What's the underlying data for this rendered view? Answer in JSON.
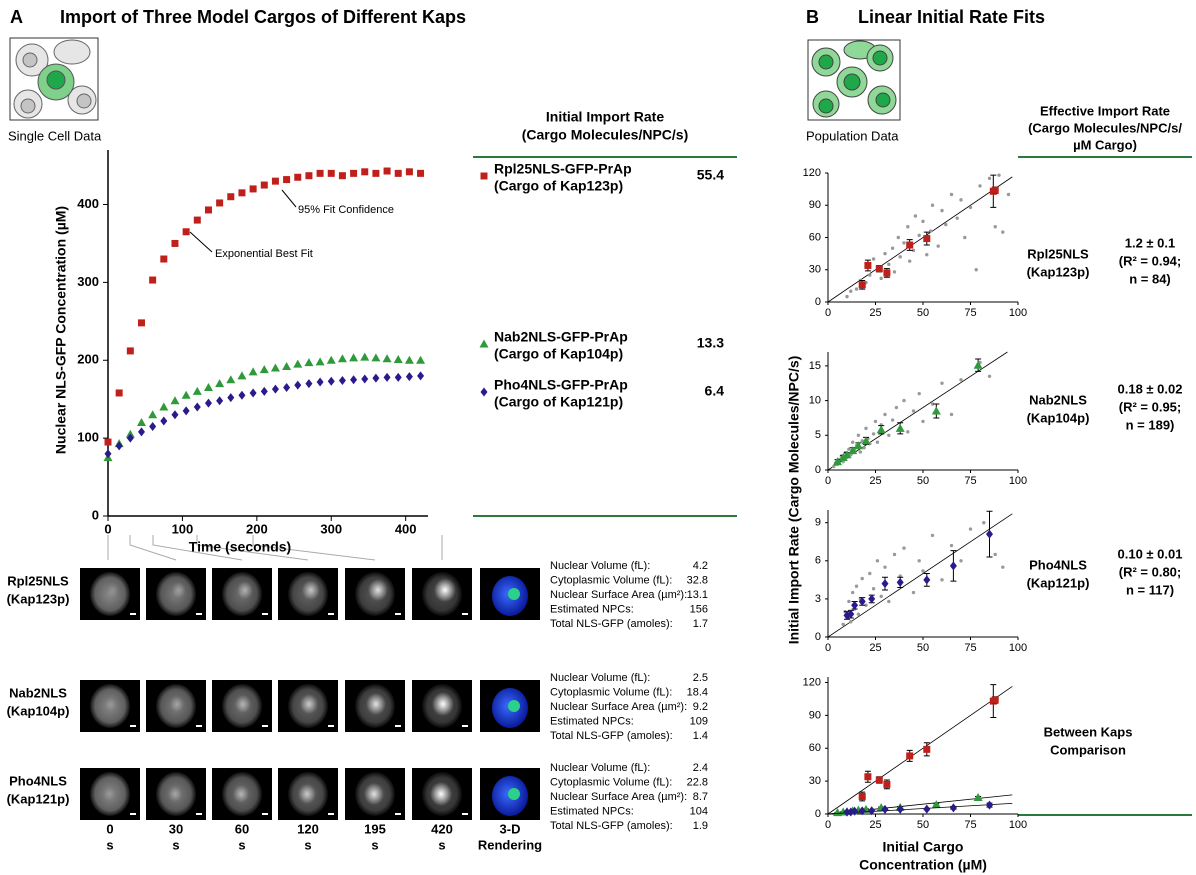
{
  "panel_a": {
    "letter": "A",
    "title": "Import of Three Model Cargos of Different Kaps",
    "icon_caption": "Single Cell Data",
    "rate_header": [
      "Initial Import Rate",
      "(Cargo Molecules/NPC/s)"
    ]
  },
  "panel_b": {
    "letter": "B",
    "title": "Linear Initial Rate Fits",
    "icon_caption": "Population Data",
    "rate_header": [
      "Effective Import Rate",
      "(Cargo Molecules/NPC/s/",
      "µM Cargo)"
    ],
    "y_label": "Initial Import Rate (Cargo Molecules/NPC/s)",
    "x_label": [
      "Initial Cargo",
      "Concentration (µM)"
    ]
  },
  "chart_data": [
    {
      "type": "scatter",
      "x_label": "Time (seconds)",
      "y_label": "Nuclear NLS-GFP Concentration (µM)",
      "annotations": [
        "Exponential Best Fit",
        "95% Fit Confidence"
      ],
      "xlim": [
        0,
        430
      ],
      "xticks": [
        0,
        100,
        200,
        300,
        400
      ],
      "ylim": [
        0,
        470
      ],
      "yticks": [
        0,
        100,
        200,
        300,
        400
      ],
      "x": [
        0,
        15,
        30,
        45,
        60,
        75,
        90,
        105,
        120,
        135,
        150,
        165,
        180,
        195,
        210,
        225,
        240,
        255,
        270,
        285,
        300,
        315,
        330,
        345,
        360,
        375,
        390,
        405,
        420
      ],
      "series": [
        {
          "name": "Rpl25NLS-GFP-PrAp",
          "cargo_of": "(Cargo of Kap123p)",
          "rate": 55.4,
          "marker": "square",
          "color": "#c0201b",
          "values": [
            95,
            158,
            212,
            248,
            303,
            330,
            350,
            365,
            380,
            393,
            402,
            410,
            415,
            420,
            425,
            430,
            432,
            435,
            437,
            440,
            440,
            437,
            440,
            442,
            440,
            443,
            440,
            442,
            440
          ]
        },
        {
          "name": "Nab2NLS-GFP-PrAp",
          "cargo_of": "(Cargo of Kap104p)",
          "rate": 13.3,
          "marker": "triangle",
          "color": "#2e9a3a",
          "values": [
            75,
            93,
            105,
            120,
            130,
            140,
            148,
            155,
            160,
            165,
            170,
            175,
            180,
            185,
            188,
            190,
            192,
            195,
            197,
            198,
            200,
            202,
            203,
            204,
            203,
            202,
            201,
            200,
            200
          ]
        },
        {
          "name": "Pho4NLS-GFP-PrAp",
          "cargo_of": "(Cargo of Kap121p)",
          "rate": 6.4,
          "marker": "diamond",
          "color": "#2b1a8c",
          "values": [
            80,
            90,
            100,
            108,
            115,
            122,
            130,
            135,
            140,
            145,
            148,
            152,
            155,
            158,
            160,
            163,
            165,
            168,
            170,
            172,
            173,
            174,
            175,
            176,
            177,
            178,
            178,
            179,
            180
          ]
        }
      ]
    },
    {
      "type": "scatter",
      "row_label": [
        "Rpl25NLS",
        "(Kap123p)"
      ],
      "fit": {
        "value": 1.2,
        "label": "1.2 ± 0.1"
      },
      "stats": [
        "(R² = 0.94;",
        "n = 84)"
      ],
      "xlim": [
        0,
        100
      ],
      "xticks": [
        0,
        25,
        50,
        75,
        100
      ],
      "ylim": [
        0,
        120
      ],
      "yticks": [
        0,
        30,
        60,
        90,
        120
      ],
      "series": [
        {
          "color": "#999999",
          "marker": "circle",
          "x": [
            10,
            12,
            15,
            17,
            20,
            22,
            24,
            26,
            28,
            30,
            32,
            34,
            35,
            37,
            38,
            40,
            42,
            43,
            45,
            46,
            48,
            50,
            52,
            54,
            55,
            58,
            60,
            62,
            65,
            68,
            70,
            72,
            75,
            78,
            80,
            85,
            88,
            90,
            92,
            95
          ],
          "values": [
            5,
            10,
            12,
            20,
            18,
            25,
            40,
            30,
            22,
            45,
            35,
            50,
            28,
            60,
            42,
            55,
            70,
            38,
            48,
            80,
            62,
            75,
            44,
            66,
            90,
            52,
            85,
            72,
            100,
            78,
            95,
            60,
            88,
            30,
            108,
            115,
            70,
            118,
            65,
            100
          ]
        },
        {
          "color": "#c0201b",
          "marker": "square",
          "x": [
            18,
            21,
            27,
            31,
            43,
            52,
            87,
            88
          ],
          "values": [
            16,
            34,
            31,
            27,
            53,
            59,
            103,
            104
          ],
          "errors": [
            4,
            5,
            3,
            4,
            5,
            6,
            15,
            3
          ]
        }
      ]
    },
    {
      "type": "scatter",
      "row_label": [
        "Nab2NLS",
        "(Kap104p)"
      ],
      "fit": {
        "value": 0.18,
        "label": "0.18 ± 0.02"
      },
      "stats": [
        "(R² = 0.95;",
        "n = 189)"
      ],
      "xlim": [
        0,
        100
      ],
      "xticks": [
        0,
        25,
        50,
        75,
        100
      ],
      "ylim": [
        0,
        17
      ],
      "yticks": [
        0,
        5,
        10,
        15
      ],
      "series": [
        {
          "color": "#999999",
          "marker": "circle",
          "x": [
            3,
            4,
            5,
            6,
            7,
            8,
            9,
            10,
            11,
            12,
            13,
            14,
            15,
            16,
            17,
            18,
            19,
            20,
            21,
            22,
            24,
            25,
            26,
            28,
            30,
            32,
            34,
            36,
            38,
            40,
            42,
            45,
            48,
            50,
            55,
            60,
            65,
            70,
            80,
            85
          ],
          "values": [
            0.5,
            1,
            0.8,
            1.5,
            2,
            1.2,
            2.5,
            1.8,
            3,
            2.2,
            4,
            2.8,
            3.5,
            5,
            2.6,
            4.2,
            3.2,
            6,
            4.5,
            3.8,
            5.2,
            7,
            4,
            6.5,
            8,
            5,
            7.2,
            9,
            6,
            10,
            5.5,
            8.5,
            11,
            7,
            9.5,
            12.5,
            8,
            13,
            15.5,
            13.5
          ]
        },
        {
          "color": "#2e9a3a",
          "marker": "triangle",
          "x": [
            5,
            8,
            10,
            13,
            16,
            20,
            28,
            38,
            57,
            79
          ],
          "values": [
            1.2,
            1.8,
            2.2,
            2.8,
            3.5,
            4.2,
            5.8,
            6,
            8.5,
            15.1
          ],
          "errors": [
            0.3,
            0.3,
            0.3,
            0.4,
            0.4,
            0.5,
            0.6,
            0.8,
            1,
            0.9
          ]
        }
      ]
    },
    {
      "type": "scatter",
      "row_label": [
        "Pho4NLS",
        "(Kap121p)"
      ],
      "fit": {
        "value": 0.1,
        "label": "0.10 ± 0.01"
      },
      "stats": [
        "(R² = 0.80;",
        "n = 117)"
      ],
      "xlim": [
        0,
        100
      ],
      "xticks": [
        0,
        25,
        50,
        75,
        100
      ],
      "ylim": [
        0,
        10
      ],
      "yticks": [
        0,
        3,
        6,
        9
      ],
      "series": [
        {
          "color": "#999999",
          "marker": "circle",
          "x": [
            8,
            9,
            10,
            11,
            12,
            13,
            14,
            15,
            16,
            17,
            18,
            20,
            22,
            24,
            26,
            28,
            30,
            32,
            35,
            38,
            40,
            45,
            48,
            50,
            55,
            60,
            65,
            70,
            75,
            82,
            88,
            92
          ],
          "values": [
            1,
            2,
            1.5,
            2.8,
            1.2,
            3.5,
            2.2,
            4,
            1.8,
            3,
            4.6,
            2.5,
            5,
            3.8,
            6,
            3.2,
            5.5,
            2.8,
            6.5,
            4.8,
            7,
            3.5,
            6,
            5.2,
            8,
            4.5,
            7.2,
            6,
            8.5,
            9,
            6.5,
            5.5
          ]
        },
        {
          "color": "#2b1a8c",
          "marker": "diamond",
          "x": [
            10,
            12,
            14,
            18,
            23,
            30,
            38,
            52,
            66,
            85
          ],
          "values": [
            1.7,
            1.8,
            2.5,
            2.8,
            3,
            4.2,
            4.3,
            4.5,
            5.6,
            8.1
          ],
          "errors": [
            0.3,
            0.3,
            0.3,
            0.3,
            0.3,
            0.5,
            0.4,
            0.5,
            1.2,
            1.8
          ]
        }
      ]
    },
    {
      "type": "scatter",
      "row_label": [
        "Between Kaps",
        "Comparison"
      ],
      "xlim": [
        0,
        100
      ],
      "xticks": [
        0,
        25,
        50,
        75,
        100
      ],
      "ylim": [
        0,
        125
      ],
      "yticks": [
        0,
        30,
        60,
        90,
        120
      ],
      "series": [
        {
          "color": "#c0201b",
          "marker": "square",
          "fit": 1.2,
          "x": [
            18,
            21,
            27,
            31,
            43,
            52,
            87,
            88
          ],
          "values": [
            16,
            34,
            31,
            27,
            53,
            59,
            103,
            104
          ],
          "errors": [
            4,
            5,
            3,
            4,
            5,
            6,
            15,
            3
          ]
        },
        {
          "color": "#2e9a3a",
          "marker": "triangle",
          "fit": 0.18,
          "x": [
            5,
            8,
            10,
            13,
            16,
            20,
            28,
            38,
            57,
            79
          ],
          "values": [
            1.2,
            1.8,
            2.2,
            2.8,
            3.5,
            4.2,
            5.8,
            6,
            8.5,
            15.1
          ],
          "errors": [
            0.3,
            0.3,
            0.3,
            0.4,
            0.4,
            0.5,
            0.6,
            0.8,
            1,
            0.9
          ]
        },
        {
          "color": "#2b1a8c",
          "marker": "diamond",
          "fit": 0.1,
          "x": [
            10,
            12,
            14,
            18,
            23,
            30,
            38,
            52,
            66,
            85
          ],
          "values": [
            1.7,
            1.8,
            2.5,
            2.8,
            3,
            4.2,
            4.3,
            4.5,
            5.6,
            8.1
          ],
          "errors": [
            0.3,
            0.3,
            0.3,
            0.3,
            0.3,
            0.5,
            0.4,
            0.5,
            1.2,
            1.8
          ]
        }
      ]
    }
  ],
  "micrographs": {
    "time_labels": [
      [
        "0",
        "s"
      ],
      [
        "30",
        "s"
      ],
      [
        "60",
        "s"
      ],
      [
        "120",
        "s"
      ],
      [
        "195",
        "s"
      ],
      [
        "420",
        "s"
      ],
      [
        "3-D",
        "Rendering"
      ]
    ],
    "rows": [
      {
        "label": [
          "Rpl25NLS",
          "(Kap123p)"
        ],
        "stats": [
          [
            "Nuclear Volume (fL):",
            4.2
          ],
          [
            "Cytoplasmic Volume (fL):",
            32.8
          ],
          [
            "Nuclear Surface Area (µm²):",
            13.1
          ],
          [
            "Estimated NPCs:",
            156
          ],
          [
            "Total NLS-GFP (amoles):",
            1.7
          ]
        ]
      },
      {
        "label": [
          "Nab2NLS",
          "(Kap104p)"
        ],
        "stats": [
          [
            "Nuclear Volume (fL):",
            2.5
          ],
          [
            "Cytoplasmic Volume (fL):",
            18.4
          ],
          [
            "Nuclear Surface Area (µm²):",
            9.2
          ],
          [
            "Estimated NPCs:",
            109
          ],
          [
            "Total NLS-GFP (amoles):",
            1.4
          ]
        ]
      },
      {
        "label": [
          "Pho4NLS",
          "(Kap121p)"
        ],
        "stats": [
          [
            "Nuclear Volume (fL):",
            2.4
          ],
          [
            "Cytoplasmic Volume (fL):",
            22.8
          ],
          [
            "Nuclear Surface Area (µm²):",
            8.7
          ],
          [
            "Estimated NPCs:",
            104
          ],
          [
            "Total NLS-GFP (amoles):",
            1.9
          ]
        ]
      }
    ]
  }
}
